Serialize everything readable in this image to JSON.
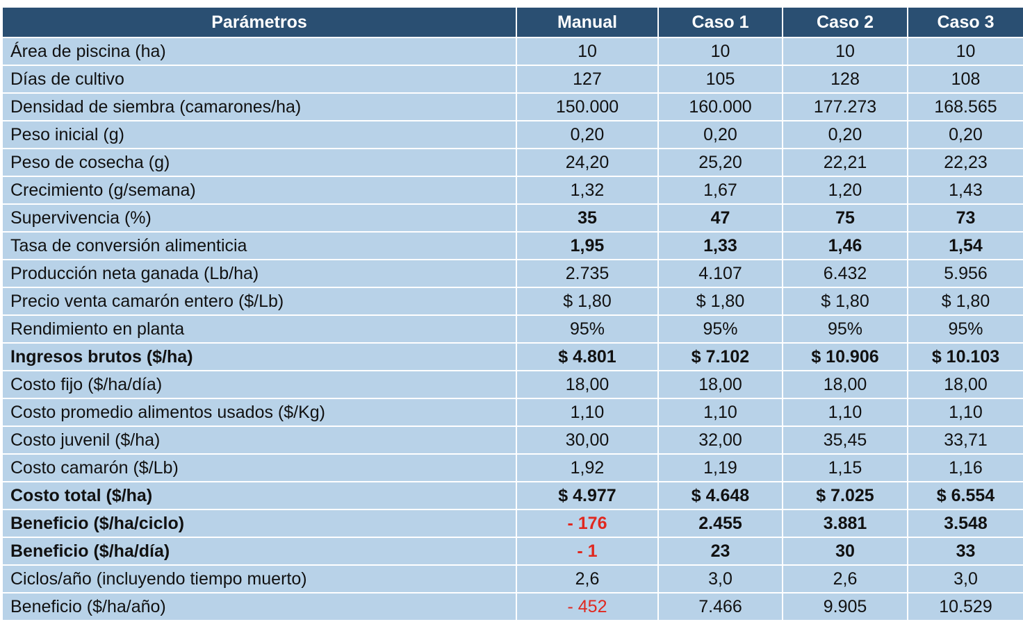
{
  "table": {
    "headers": [
      "Parámetros",
      "Manual",
      "Caso 1",
      "Caso 2",
      "Caso 3"
    ],
    "rows": [
      {
        "label": "Área de piscina (ha)",
        "values": [
          "10",
          "10",
          "10",
          "10"
        ],
        "bold": false,
        "neg": [
          false,
          false,
          false,
          false
        ]
      },
      {
        "label": "Días de cultivo",
        "values": [
          "127",
          "105",
          "128",
          "108"
        ],
        "bold": false,
        "neg": [
          false,
          false,
          false,
          false
        ]
      },
      {
        "label": "Densidad de siembra (camarones/ha)",
        "values": [
          "150.000",
          "160.000",
          "177.273",
          "168.565"
        ],
        "bold": false,
        "neg": [
          false,
          false,
          false,
          false
        ]
      },
      {
        "label": "Peso inicial (g)",
        "values": [
          "0,20",
          "0,20",
          "0,20",
          "0,20"
        ],
        "bold": false,
        "neg": [
          false,
          false,
          false,
          false
        ]
      },
      {
        "label": "Peso de cosecha (g)",
        "values": [
          "24,20",
          "25,20",
          "22,21",
          "22,23"
        ],
        "bold": false,
        "neg": [
          false,
          false,
          false,
          false
        ]
      },
      {
        "label": "Crecimiento (g/semana)",
        "values": [
          "1,32",
          "1,67",
          "1,20",
          "1,43"
        ],
        "bold": false,
        "neg": [
          false,
          false,
          false,
          false
        ]
      },
      {
        "label": "Supervivencia (%)",
        "values": [
          "35",
          "47",
          "75",
          "73"
        ],
        "bold": false,
        "boldValues": true,
        "neg": [
          false,
          false,
          false,
          false
        ]
      },
      {
        "label": "Tasa de conversión alimenticia",
        "values": [
          "1,95",
          "1,33",
          "1,46",
          "1,54"
        ],
        "bold": false,
        "boldValues": true,
        "neg": [
          false,
          false,
          false,
          false
        ]
      },
      {
        "label": "Producción neta ganada (Lb/ha)",
        "values": [
          "2.735",
          "4.107",
          "6.432",
          "5.956"
        ],
        "bold": false,
        "neg": [
          false,
          false,
          false,
          false
        ]
      },
      {
        "label": "Precio venta camarón entero ($/Lb)",
        "values": [
          "$ 1,80",
          "$ 1,80",
          "$ 1,80",
          "$ 1,80"
        ],
        "bold": false,
        "neg": [
          false,
          false,
          false,
          false
        ]
      },
      {
        "label": "Rendimiento en planta",
        "values": [
          "95%",
          "95%",
          "95%",
          "95%"
        ],
        "bold": false,
        "neg": [
          false,
          false,
          false,
          false
        ]
      },
      {
        "label": "Ingresos brutos ($/ha)",
        "values": [
          "$ 4.801",
          "$ 7.102",
          "$ 10.906",
          "$ 10.103"
        ],
        "bold": true,
        "neg": [
          false,
          false,
          false,
          false
        ]
      },
      {
        "label": "Costo fijo ($/ha/día)",
        "values": [
          "18,00",
          "18,00",
          "18,00",
          "18,00"
        ],
        "bold": false,
        "neg": [
          false,
          false,
          false,
          false
        ]
      },
      {
        "label": "Costo promedio alimentos usados ($/Kg)",
        "values": [
          "1,10",
          "1,10",
          "1,10",
          "1,10"
        ],
        "bold": false,
        "neg": [
          false,
          false,
          false,
          false
        ]
      },
      {
        "label": "Costo juvenil ($/ha)",
        "values": [
          "30,00",
          "32,00",
          "35,45",
          "33,71"
        ],
        "bold": false,
        "neg": [
          false,
          false,
          false,
          false
        ]
      },
      {
        "label": "Costo camarón ($/Lb)",
        "values": [
          "1,92",
          "1,19",
          "1,15",
          "1,16"
        ],
        "bold": false,
        "neg": [
          false,
          false,
          false,
          false
        ]
      },
      {
        "label": "Costo total ($/ha)",
        "values": [
          "$ 4.977",
          "$ 4.648",
          "$ 7.025",
          "$ 6.554"
        ],
        "bold": true,
        "neg": [
          false,
          false,
          false,
          false
        ]
      },
      {
        "label": "Beneficio ($/ha/ciclo)",
        "values": [
          "- 176",
          "2.455",
          "3.881",
          "3.548"
        ],
        "bold": true,
        "neg": [
          true,
          false,
          false,
          false
        ]
      },
      {
        "label": "Beneficio ($/ha/día)",
        "values": [
          "- 1",
          "23",
          "30",
          "33"
        ],
        "bold": true,
        "neg": [
          true,
          false,
          false,
          false
        ]
      },
      {
        "label": "Ciclos/año (incluyendo tiempo muerto)",
        "values": [
          "2,6",
          "3,0",
          "2,6",
          "3,0"
        ],
        "bold": false,
        "neg": [
          false,
          false,
          false,
          false
        ]
      },
      {
        "label": "Beneficio ($/ha/año)",
        "values": [
          "- 452",
          "7.466",
          "9.905",
          "10.529"
        ],
        "bold": false,
        "neg": [
          true,
          false,
          false,
          false
        ]
      }
    ]
  }
}
